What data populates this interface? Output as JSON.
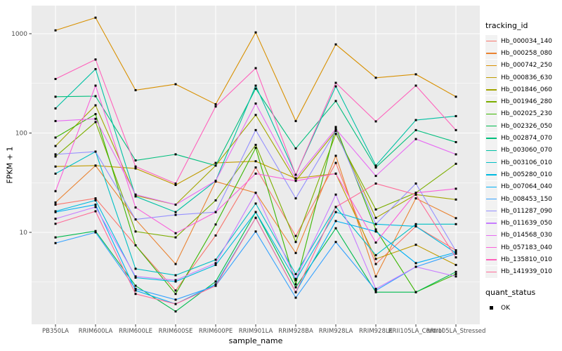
{
  "figure": {
    "background": "#FFFFFF",
    "panel_background": "#EBEBEB",
    "gridline_color": "#FFFFFF",
    "axis_text_color": "#4D4D4D",
    "tick_mark_color": "#333333",
    "axis_title_color": "#000000",
    "legend_key_background": "#F2F2F2",
    "point_color": "#000000"
  },
  "chart_data": {
    "type": "line",
    "title": "",
    "xlabel": "sample_name",
    "ylabel": "FPKM + 1",
    "y_scale": "log10",
    "ylim": [
      1.2,
      1910
    ],
    "y_ticks": [
      10,
      100,
      1000
    ],
    "y_tick_labels": [
      "10",
      "100",
      "1000"
    ],
    "y_minor_ticks": [
      3.162,
      31.62,
      316.2
    ],
    "grid": "major-and-minor-horizontal, major-vertical, white on grey panel",
    "legend_position": "right",
    "legend_title": "tracking_id",
    "legend2_title": "quant_status",
    "legend2_items": [
      "OK"
    ],
    "categories": [
      "PB350LA",
      "RRIM600LA",
      "RRIM600LE",
      "RRIM600SE",
      "RRIM600PE",
      "RRIM901LA",
      "RRIM928BA",
      "RRIM928LA",
      "RRIM928LE",
      "RRII105LA_Control",
      "RRII105LA_Stressed"
    ],
    "series": [
      {
        "name": "Hb_000034_140",
        "color": "#F8766D",
        "values": [
          19,
          22,
          7.4,
          2.6,
          9.3,
          45,
          9.2,
          50,
          4.8,
          11.5,
          6.6
        ]
      },
      {
        "name": "Hb_000258_080",
        "color": "#EA8331",
        "values": [
          20,
          47,
          13.5,
          4.8,
          32.5,
          25,
          6.2,
          59,
          3.6,
          22,
          13.9
        ]
      },
      {
        "name": "Hb_000742_250",
        "color": "#D89000",
        "values": [
          1080,
          1450,
          270,
          310,
          195,
          1030,
          132,
          780,
          360,
          390,
          232
        ]
      },
      {
        "name": "Hb_000836_630",
        "color": "#C09B00",
        "values": [
          46,
          47,
          44,
          30,
          50,
          52,
          35,
          39,
          5.4,
          7.5,
          4.7
        ]
      },
      {
        "name": "Hb_001846_060",
        "color": "#A3A500",
        "values": [
          74,
          190,
          23.5,
          19,
          47,
          152,
          33,
          105,
          14,
          24,
          21.4
        ]
      },
      {
        "name": "Hb_001946_280",
        "color": "#7CAE00",
        "values": [
          58,
          129,
          10.2,
          8.9,
          21,
          76,
          8.0,
          98,
          17,
          25,
          49
        ]
      },
      {
        "name": "Hb_002025_230",
        "color": "#39B600",
        "values": [
          90,
          155,
          7.4,
          2.4,
          12,
          71,
          3.0,
          115,
          10.7,
          2.5,
          3.8
        ]
      },
      {
        "name": "Hb_002326_050",
        "color": "#00BB4E",
        "values": [
          8.9,
          10.3,
          2.9,
          1.6,
          3.2,
          16,
          2.8,
          11,
          2.5,
          2.5,
          4.0
        ]
      },
      {
        "name": "Hb_002874_070",
        "color": "#00BF7D",
        "values": [
          232,
          235,
          53,
          61,
          47,
          280,
          70,
          210,
          45,
          107,
          81
        ]
      },
      {
        "name": "Hb_003060_070",
        "color": "#00C1A3",
        "values": [
          177,
          440,
          23,
          16,
          33,
          300,
          38,
          295,
          47,
          135,
          148
        ]
      },
      {
        "name": "Hb_003106_010",
        "color": "#00BFC4",
        "values": [
          39,
          65,
          4.3,
          3.7,
          5.3,
          19.5,
          3.8,
          18,
          5.9,
          12.1,
          12.1
        ]
      },
      {
        "name": "Hb_005280_010",
        "color": "#00BAE0",
        "values": [
          16.3,
          21,
          3.5,
          3.2,
          4.7,
          16,
          3.3,
          16,
          12.1,
          11.5,
          6.2
        ]
      },
      {
        "name": "Hb_007064_040",
        "color": "#00B0F6",
        "values": [
          16,
          19,
          2.6,
          1.9,
          3.0,
          14,
          2.5,
          13,
          10.2,
          4.9,
          6.3
        ]
      },
      {
        "name": "Hb_008453_150",
        "color": "#35A2FF",
        "values": [
          7.8,
          10,
          2.7,
          2.1,
          2.9,
          10.2,
          2.2,
          8,
          2.6,
          4.5,
          6.1
        ]
      },
      {
        "name": "Hb_011287_090",
        "color": "#9590FF",
        "values": [
          61,
          65,
          13.5,
          15,
          16,
          107,
          22,
          105,
          12.1,
          31,
          6.5
        ]
      },
      {
        "name": "Hb_011639_050",
        "color": "#C77CFF",
        "values": [
          13.7,
          18,
          3.6,
          3.3,
          4.9,
          25,
          3.4,
          24,
          2.7,
          4.5,
          3.6
        ]
      },
      {
        "name": "Hb_014568_030",
        "color": "#E76BF3",
        "values": [
          132,
          139,
          24,
          19,
          33,
          198,
          35,
          110,
          37,
          87,
          61
        ]
      },
      {
        "name": "Hb_057183_040",
        "color": "#FA62DB",
        "values": [
          26,
          300,
          17.8,
          9.8,
          16,
          39,
          33,
          39,
          7.9,
          25,
          27.5
        ]
      },
      {
        "name": "Hb_135810_010",
        "color": "#FF62BC",
        "values": [
          350,
          550,
          46,
          31,
          185,
          450,
          38,
          320,
          131,
          300,
          107
        ]
      },
      {
        "name": "Hb_141939_010",
        "color": "#FF6A98",
        "values": [
          12.2,
          16.3,
          2.4,
          1.9,
          2.9,
          14,
          2.5,
          18,
          31,
          24,
          5.6
        ]
      }
    ]
  }
}
